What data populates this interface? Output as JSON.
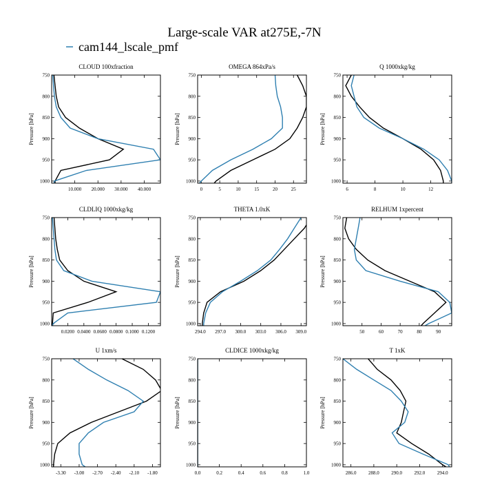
{
  "figure": {
    "title": "Large-scale VAR at275E,-7N",
    "legend": [
      {
        "label": "cam144_lscale_pmf",
        "color": "#2e7fb0"
      }
    ],
    "series_colors": {
      "obs": "#000000",
      "model": "#2e7fb0"
    }
  },
  "chart_data": [
    {
      "type": "line",
      "title": "CLOUD  100xfraction",
      "ylabel": "Pressure [hPa]",
      "yticks": [
        750,
        800,
        850,
        900,
        950,
        1000
      ],
      "ylim": [
        750,
        1005
      ],
      "xlim": [
        0,
        47
      ],
      "xticks": [
        10,
        20,
        30,
        40
      ],
      "xticklabels": [
        "10.000",
        "20.000",
        "30.000",
        "40.000"
      ],
      "p": [
        750,
        775,
        800,
        825,
        850,
        875,
        900,
        925,
        950,
        975,
        1000,
        1005
      ],
      "series": [
        {
          "values": [
            1,
            1.5,
            2,
            3,
            6,
            12,
            20,
            31,
            25,
            4,
            1.5,
            1.5
          ]
        },
        {
          "values": [
            0.5,
            0.8,
            1.2,
            2,
            4,
            8,
            20,
            44,
            47,
            15,
            1.2,
            1
          ]
        }
      ]
    },
    {
      "type": "line",
      "title": "OMEGA  864xPa/s",
      "ylabel": "Pressure [hPa]",
      "yticks": [
        750,
        800,
        850,
        900,
        950,
        1000
      ],
      "ylim": [
        750,
        1005
      ],
      "xlim": [
        -1,
        28.5
      ],
      "xticks": [
        0,
        5,
        10,
        15,
        20,
        25
      ],
      "xticklabels": [
        "0",
        "5",
        "10",
        "15",
        "20",
        "25"
      ],
      "p": [
        750,
        775,
        800,
        825,
        850,
        875,
        900,
        925,
        950,
        975,
        1000,
        1005
      ],
      "series": [
        {
          "values": [
            26,
            27.5,
            28.5,
            28.5,
            27.5,
            26,
            24,
            20,
            14,
            8,
            4,
            3.5
          ]
        },
        {
          "values": [
            20,
            20.2,
            20.6,
            21.5,
            22,
            22,
            19,
            14,
            8,
            3,
            0,
            -0.5
          ]
        }
      ]
    },
    {
      "type": "line",
      "title": "Q  1000xkg/kg",
      "ylabel": "Pressure [hPa]",
      "yticks": [
        750,
        800,
        850,
        900,
        950,
        1000
      ],
      "ylim": [
        750,
        1005
      ],
      "xlim": [
        5.7,
        13.5
      ],
      "xticks": [
        6,
        8,
        10,
        12
      ],
      "xticklabels": [
        "6",
        "8",
        "10",
        "12"
      ],
      "p": [
        750,
        775,
        800,
        825,
        850,
        875,
        900,
        925,
        950,
        975,
        1000,
        1005
      ],
      "series": [
        {
          "values": [
            6.3,
            5.9,
            6.3,
            6.9,
            7.6,
            8.6,
            10,
            11.3,
            12.2,
            12.7,
            12.9,
            12.9
          ]
        },
        {
          "values": [
            6.5,
            6.3,
            6.5,
            6.7,
            7.2,
            8.3,
            10,
            11.5,
            12.6,
            13.2,
            13.5,
            13.5
          ]
        }
      ]
    },
    {
      "type": "line",
      "title": "CLDLIQ  1000xkg/kg",
      "ylabel": "Pressure [hPa]",
      "yticks": [
        750,
        800,
        850,
        900,
        950,
        1000
      ],
      "ylim": [
        750,
        1005
      ],
      "xlim": [
        0,
        0.135
      ],
      "xticks": [
        0.02,
        0.04,
        0.06,
        0.08,
        0.1,
        0.12
      ],
      "xticklabels": [
        "0.0200",
        "0.0400",
        "0.0600",
        "0.0800",
        "0.1000",
        "0.1200"
      ],
      "p": [
        750,
        775,
        800,
        825,
        850,
        875,
        900,
        925,
        950,
        975,
        1000,
        1005
      ],
      "series": [
        {
          "values": [
            0.003,
            0.004,
            0.005,
            0.007,
            0.01,
            0.02,
            0.04,
            0.08,
            0.045,
            0.002,
            0.001,
            0.001
          ]
        },
        {
          "values": [
            0.001,
            0.002,
            0.003,
            0.004,
            0.006,
            0.015,
            0.05,
            0.135,
            0.13,
            0.02,
            0.002,
            0.001
          ]
        }
      ]
    },
    {
      "type": "line",
      "title": "THETA  1.0xK",
      "ylabel": "Pressure [hPa]",
      "yticks": [
        750,
        800,
        850,
        900,
        950,
        1000
      ],
      "ylim": [
        750,
        1005
      ],
      "xlim": [
        293.6,
        309.8
      ],
      "xticks": [
        294,
        297,
        300,
        303,
        306,
        309
      ],
      "xticklabels": [
        "294.0",
        "297.0",
        "300.0",
        "303.0",
        "306.0",
        "309.0"
      ],
      "p": [
        750,
        775,
        800,
        825,
        850,
        875,
        900,
        925,
        950,
        975,
        1000,
        1005
      ],
      "series": [
        {
          "values": [
            310.5,
            309.5,
            308,
            306.5,
            305,
            303,
            300.5,
            297,
            295,
            294.5,
            294.3,
            294.3
          ]
        },
        {
          "values": [
            309,
            308,
            307,
            305.8,
            304.5,
            302.5,
            300,
            297.3,
            295.5,
            294.8,
            294.5,
            294.5
          ]
        }
      ]
    },
    {
      "type": "line",
      "title": "RELHUM  1xpercent",
      "ylabel": "Pressure [hPa]",
      "yticks": [
        750,
        800,
        850,
        900,
        950,
        1000
      ],
      "ylim": [
        750,
        1005
      ],
      "xlim": [
        40,
        97
      ],
      "xticks": [
        50,
        60,
        70,
        80,
        90
      ],
      "xticklabels": [
        "50",
        "60",
        "70",
        "80",
        "90"
      ],
      "p": [
        750,
        775,
        800,
        825,
        850,
        875,
        900,
        925,
        950,
        975,
        1000,
        1005
      ],
      "series": [
        {
          "values": [
            42,
            41,
            43,
            47,
            53,
            62,
            75,
            88,
            94,
            88,
            82,
            81
          ]
        },
        {
          "values": [
            49,
            48,
            47,
            46,
            47,
            52,
            70,
            90,
            96,
            97,
            85,
            83
          ]
        }
      ]
    },
    {
      "type": "line",
      "title": "U  1xm/s",
      "ylabel": "Pressure [hPa]",
      "yticks": [
        750,
        800,
        850,
        900,
        950,
        1000
      ],
      "ylim": [
        750,
        1005
      ],
      "xlim": [
        -3.45,
        -1.67
      ],
      "xticks": [
        -3.3,
        -3,
        -2.7,
        -2.4,
        -2.1,
        -1.8
      ],
      "xticklabels": [
        "-3.30",
        "-3.00",
        "-2.70",
        "-2.40",
        "-2.10",
        "-1.80"
      ],
      "p": [
        750,
        775,
        800,
        825,
        850,
        875,
        900,
        925,
        950,
        975,
        1000,
        1005
      ],
      "series": [
        {
          "values": [
            -2.3,
            -1.95,
            -1.75,
            -1.65,
            -1.9,
            -2.35,
            -2.8,
            -3.15,
            -3.35,
            -3.4,
            -3.42,
            -3.42
          ]
        },
        {
          "values": [
            -3.1,
            -2.85,
            -2.55,
            -2.2,
            -1.95,
            -2.1,
            -2.6,
            -2.85,
            -3,
            -3,
            -2.95,
            -2.9
          ]
        }
      ]
    },
    {
      "type": "line",
      "title": "CLDICE  1000xkg/kg",
      "ylabel": "Pressure [hPa]",
      "yticks": [
        750,
        800,
        850,
        900,
        950,
        1000
      ],
      "ylim": [
        750,
        1005
      ],
      "xlim": [
        0,
        1
      ],
      "xticks": [
        0,
        0.2,
        0.4,
        0.6,
        0.8,
        1
      ],
      "xticklabels": [
        "0.0",
        "0.2",
        "0.4",
        "0.6",
        "0.8",
        "1.0"
      ],
      "p": [
        750,
        775,
        800,
        825,
        850,
        875,
        900,
        925,
        950,
        975,
        1000,
        1005
      ],
      "series": [
        {
          "values": [
            0,
            0,
            0,
            0,
            0,
            0,
            0,
            0,
            0,
            0,
            0,
            0
          ]
        },
        {
          "values": [
            0,
            0,
            0,
            0,
            0,
            0,
            0,
            0,
            0,
            0,
            0,
            0
          ]
        }
      ]
    },
    {
      "type": "line",
      "title": "T  1xK",
      "ylabel": "Pressure [hPa]",
      "yticks": [
        750,
        800,
        850,
        900,
        950,
        1000
      ],
      "ylim": [
        750,
        1005
      ],
      "xlim": [
        285.3,
        294.8
      ],
      "xticks": [
        286,
        288,
        290,
        292,
        294
      ],
      "xticklabels": [
        "286.0",
        "288.0",
        "290.0",
        "292.0",
        "294.0"
      ],
      "p": [
        750,
        775,
        800,
        825,
        850,
        875,
        900,
        925,
        950,
        975,
        1000,
        1005
      ],
      "series": [
        {
          "values": [
            287.5,
            288.3,
            289.5,
            290.3,
            290.8,
            290.6,
            290.4,
            290,
            291.3,
            292.8,
            294,
            294.3
          ]
        },
        {
          "values": [
            285.3,
            286.5,
            288,
            289.5,
            290.4,
            291,
            290.7,
            289.6,
            290.2,
            292.3,
            294.5,
            294.6
          ]
        }
      ]
    }
  ]
}
